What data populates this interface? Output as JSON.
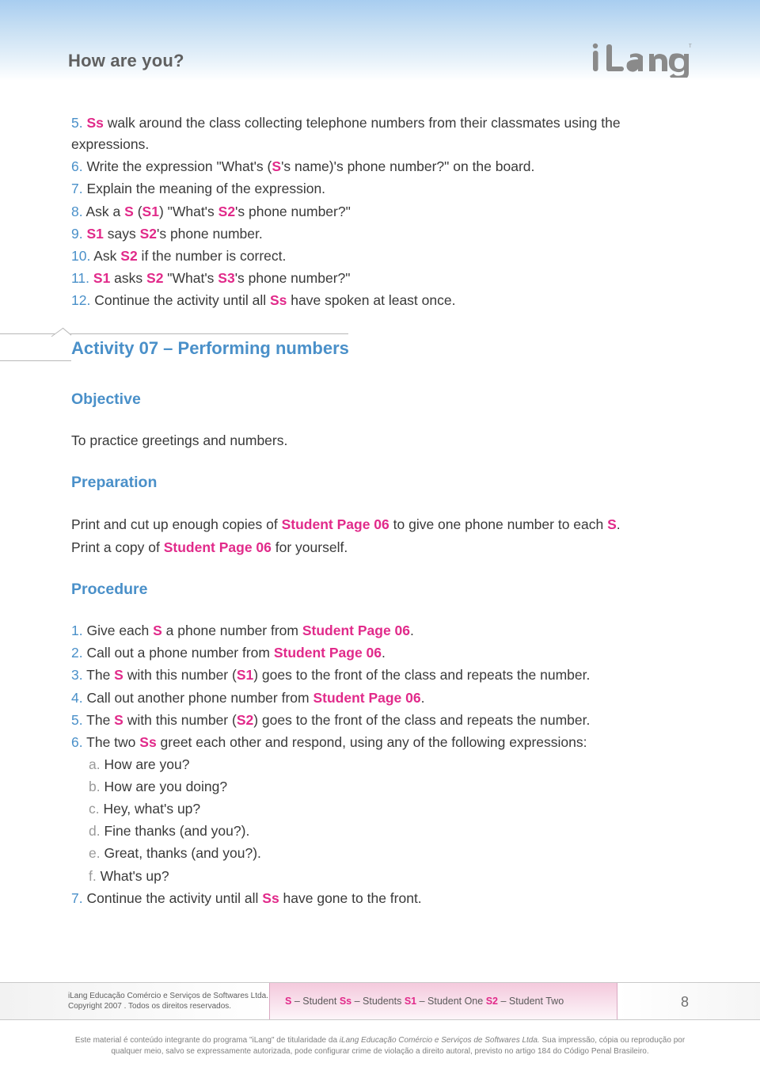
{
  "header": {
    "title": "How are you?",
    "logo_text": "iLang",
    "logo_tm": "TM",
    "logo_color": "#8a8a8a"
  },
  "steps_continued": [
    {
      "n": "5.",
      "parts": [
        {
          "t": "Ss",
          "c": "pink"
        },
        {
          "t": " walk around the class collecting telephone numbers from their classmates using the expressions."
        }
      ]
    },
    {
      "n": "6.",
      "parts": [
        {
          "t": "Write the expression \"What's ("
        },
        {
          "t": "S",
          "c": "pink"
        },
        {
          "t": "'s name)'s phone number?\" on the board."
        }
      ]
    },
    {
      "n": "7.",
      "parts": [
        {
          "t": "Explain the meaning of the expression."
        }
      ]
    },
    {
      "n": "8.",
      "parts": [
        {
          "t": "Ask a "
        },
        {
          "t": "S",
          "c": "pink"
        },
        {
          "t": " ("
        },
        {
          "t": "S1",
          "c": "pink"
        },
        {
          "t": ") \"What's "
        },
        {
          "t": "S2",
          "c": "pink"
        },
        {
          "t": "'s phone number?\""
        }
      ]
    },
    {
      "n": "9.",
      "parts": [
        {
          "t": "S1",
          "c": "pink"
        },
        {
          "t": " says "
        },
        {
          "t": "S2",
          "c": "pink"
        },
        {
          "t": "'s phone number."
        }
      ]
    },
    {
      "n": "10.",
      "parts": [
        {
          "t": "Ask "
        },
        {
          "t": "S2",
          "c": "pink"
        },
        {
          "t": " if the number is correct."
        }
      ]
    },
    {
      "n": "11.",
      "parts": [
        {
          "t": "S1",
          "c": "pink"
        },
        {
          "t": " asks "
        },
        {
          "t": "S2",
          "c": "pink"
        },
        {
          "t": " \"What's "
        },
        {
          "t": "S3",
          "c": "pink"
        },
        {
          "t": "'s phone number?\""
        }
      ]
    },
    {
      "n": "12.",
      "parts": [
        {
          "t": "Continue the activity until all "
        },
        {
          "t": "Ss",
          "c": "pink"
        },
        {
          "t": " have spoken at least once."
        }
      ]
    }
  ],
  "activity": {
    "title": "Activity 07 – Performing numbers",
    "objective_h": "Objective",
    "objective_text": "To practice greetings and numbers.",
    "preparation_h": "Preparation",
    "preparation_lines": [
      [
        {
          "t": "Print and cut up enough copies of "
        },
        {
          "t": "Student Page 06",
          "c": "pink"
        },
        {
          "t": " to give one phone number to each "
        },
        {
          "t": "S",
          "c": "pink"
        },
        {
          "t": "."
        }
      ],
      [
        {
          "t": "Print a copy of "
        },
        {
          "t": "Student Page 06",
          "c": "pink"
        },
        {
          "t": " for yourself."
        }
      ]
    ],
    "procedure_h": "Procedure",
    "procedure": [
      {
        "n": "1.",
        "parts": [
          {
            "t": "Give each "
          },
          {
            "t": "S",
            "c": "pink"
          },
          {
            "t": " a phone number from "
          },
          {
            "t": "Student Page 06",
            "c": "pink"
          },
          {
            "t": "."
          }
        ]
      },
      {
        "n": "2.",
        "parts": [
          {
            "t": "Call out a phone number from "
          },
          {
            "t": "Student Page 06",
            "c": "pink"
          },
          {
            "t": "."
          }
        ]
      },
      {
        "n": "3.",
        "parts": [
          {
            "t": "The "
          },
          {
            "t": "S",
            "c": "pink"
          },
          {
            "t": " with this number ("
          },
          {
            "t": "S1",
            "c": "pink"
          },
          {
            "t": ") goes to the front of the class and repeats the number."
          }
        ]
      },
      {
        "n": "4.",
        "parts": [
          {
            "t": "Call out another phone number from "
          },
          {
            "t": "Student Page 06",
            "c": "pink"
          },
          {
            "t": "."
          }
        ]
      },
      {
        "n": "5.",
        "parts": [
          {
            "t": "The "
          },
          {
            "t": "S",
            "c": "pink"
          },
          {
            "t": " with this number ("
          },
          {
            "t": "S2",
            "c": "pink"
          },
          {
            "t": ") goes to the front of the class and repeats the number."
          }
        ]
      },
      {
        "n": "6.",
        "parts": [
          {
            "t": "The two "
          },
          {
            "t": "Ss",
            "c": "pink"
          },
          {
            "t": " greet each other and respond, using any of the following expressions:"
          }
        ]
      }
    ],
    "sub_expressions": [
      {
        "l": "a.",
        "t": "How are you?"
      },
      {
        "l": "b.",
        "t": "How are you doing?"
      },
      {
        "l": "c.",
        "t": "Hey, what's up?"
      },
      {
        "l": "d.",
        "t": "Fine thanks (and you?)."
      },
      {
        "l": "e.",
        "t": "Great, thanks (and you?)."
      },
      {
        "l": "f.",
        "t": "What's up?"
      }
    ],
    "procedure_tail": [
      {
        "n": "7.",
        "parts": [
          {
            "t": "Continue the activity until all "
          },
          {
            "t": "Ss",
            "c": "pink"
          },
          {
            "t": " have gone to the front."
          }
        ]
      }
    ]
  },
  "footer": {
    "left_line1": "iLang Educação Comércio e Serviços de Softwares Ltda.",
    "left_line2": "Copyright 2007 . Todos os direitos reservados.",
    "legend": [
      {
        "t": "S",
        "c": "pink"
      },
      {
        "t": " – Student  "
      },
      {
        "t": "Ss",
        "c": "pink"
      },
      {
        "t": " – Students  "
      },
      {
        "t": "S1",
        "c": "pink"
      },
      {
        "t": " – Student One  "
      },
      {
        "t": "S2",
        "c": "pink"
      },
      {
        "t": " – Student Two"
      }
    ],
    "page_number": "8",
    "disclaimer_parts": [
      {
        "t": "Este material é conteúdo integrante do programa \"iLang\" de titularidade da "
      },
      {
        "t": "iLang Educação Comércio e Serviços de Softwares Ltda.",
        "em": true
      },
      {
        "t": " Sua impressão, cópia ou reprodução por"
      },
      {
        "t": "\n"
      },
      {
        "t": "qualquer meio, salvo se expressamente autorizada, pode configurar crime de violação a direito autoral, previsto no artigo 184 do Código Penal Brasileiro."
      }
    ]
  }
}
